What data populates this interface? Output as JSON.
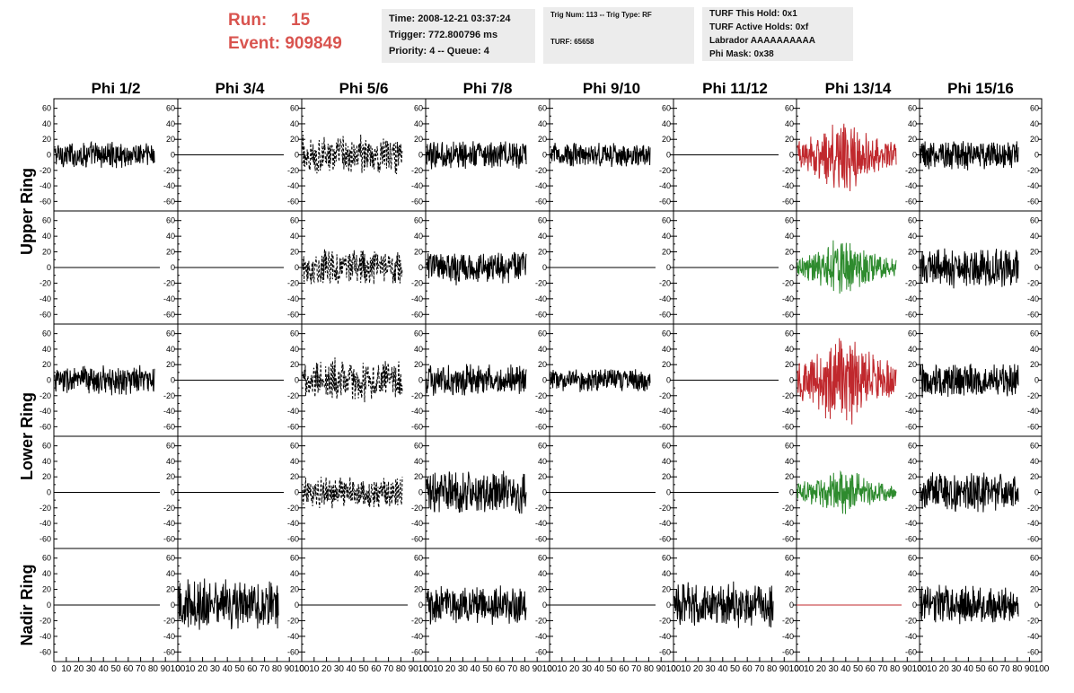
{
  "run_info": {
    "run_label": "Run:",
    "run_value": "15",
    "event_label": "Event:",
    "event_value": "909849"
  },
  "time_box": {
    "line1": "Time: 2008-12-21 03:37:24",
    "line2": "Trigger: 772.800796 ms",
    "line3": "Priority: 4 -- Queue: 4"
  },
  "trig_box": {
    "line1": "Trig Num: 113 -- Trig Type: RF",
    "line2": "TURF: 65658"
  },
  "turf_box": {
    "line1": "TURF This Hold: 0x1",
    "line2": "TURF Active Holds: 0xf",
    "line3": "Labrador AAAAAAAAAA",
    "line4": "Phi Mask: 0x38"
  },
  "colors": {
    "run_text": "#d9544f",
    "box_bg": "#ececec",
    "trace_black": "#000000",
    "trace_red": "#c0282d",
    "trace_green": "#2e8b2e"
  },
  "chart_data": {
    "type": "line",
    "columns": [
      "Phi 1/2",
      "Phi 3/4",
      "Phi 5/6",
      "Phi 7/8",
      "Phi 9/10",
      "Phi 11/12",
      "Phi 13/14",
      "Phi 15/16"
    ],
    "rows": [
      "Upper Ring",
      "Lower Ring",
      "Nadir Ring"
    ],
    "ylim": [
      -70,
      70
    ],
    "y_ticks": [
      60,
      40,
      20,
      0,
      -20,
      -40,
      -60
    ],
    "y_tick_labels": [
      "60",
      "40",
      "20",
      "0",
      "-20",
      "-40",
      "-60"
    ],
    "xlim": [
      0,
      100
    ],
    "x_ticks": [
      0,
      10,
      20,
      30,
      40,
      50,
      60,
      70,
      80,
      90,
      100
    ],
    "x_tick_labels": [
      "0",
      "10",
      "20",
      "30",
      "40",
      "50",
      "60",
      "70",
      "80",
      "90",
      "100"
    ],
    "grid": false,
    "panels": [
      [
        {
          "style": "noise",
          "amp": 14,
          "color": "black"
        },
        {
          "style": "flat",
          "color": "black"
        },
        {
          "style": "dashed",
          "amp": 20,
          "color": "black"
        },
        {
          "style": "noise",
          "amp": 15,
          "color": "black"
        },
        {
          "style": "noise",
          "amp": 13,
          "color": "black"
        },
        {
          "style": "flat",
          "color": "black"
        },
        {
          "style": "burst",
          "amp": 38,
          "color": "red"
        },
        {
          "style": "noise",
          "amp": 16,
          "color": "black"
        }
      ],
      [
        {
          "style": "flat",
          "color": "black"
        },
        {
          "style": "flat",
          "color": "black"
        },
        {
          "style": "dashed",
          "amp": 18,
          "color": "black"
        },
        {
          "style": "noise",
          "amp": 17,
          "color": "black"
        },
        {
          "style": "flat",
          "color": "black"
        },
        {
          "style": "flat",
          "color": "black"
        },
        {
          "style": "burst",
          "amp": 28,
          "color": "green"
        },
        {
          "style": "noise",
          "amp": 20,
          "color": "black"
        }
      ],
      [
        {
          "style": "noise",
          "amp": 15,
          "color": "black"
        },
        {
          "style": "flat",
          "color": "black"
        },
        {
          "style": "dashed",
          "amp": 22,
          "color": "black"
        },
        {
          "style": "noise",
          "amp": 16,
          "color": "black"
        },
        {
          "style": "noise",
          "amp": 12,
          "color": "black"
        },
        {
          "style": "flat",
          "color": "black"
        },
        {
          "style": "burst",
          "amp": 50,
          "color": "red"
        },
        {
          "style": "noise",
          "amp": 17,
          "color": "black"
        }
      ],
      [
        {
          "style": "flat",
          "color": "black"
        },
        {
          "style": "flat",
          "color": "black"
        },
        {
          "style": "dashed",
          "amp": 17,
          "color": "black"
        },
        {
          "style": "noise",
          "amp": 22,
          "color": "black"
        },
        {
          "style": "flat",
          "color": "black"
        },
        {
          "style": "flat",
          "color": "black"
        },
        {
          "style": "burst",
          "amp": 24,
          "color": "green"
        },
        {
          "style": "noise",
          "amp": 21,
          "color": "black"
        }
      ],
      [
        {
          "style": "flat",
          "color": "black"
        },
        {
          "style": "noise",
          "amp": 26,
          "color": "black"
        },
        {
          "style": "flat",
          "color": "black"
        },
        {
          "style": "noise",
          "amp": 20,
          "color": "black"
        },
        {
          "style": "flat",
          "color": "black"
        },
        {
          "style": "noise",
          "amp": 24,
          "color": "black"
        },
        {
          "style": "flat",
          "color": "red"
        },
        {
          "style": "noise",
          "amp": 20,
          "color": "black"
        }
      ]
    ]
  }
}
